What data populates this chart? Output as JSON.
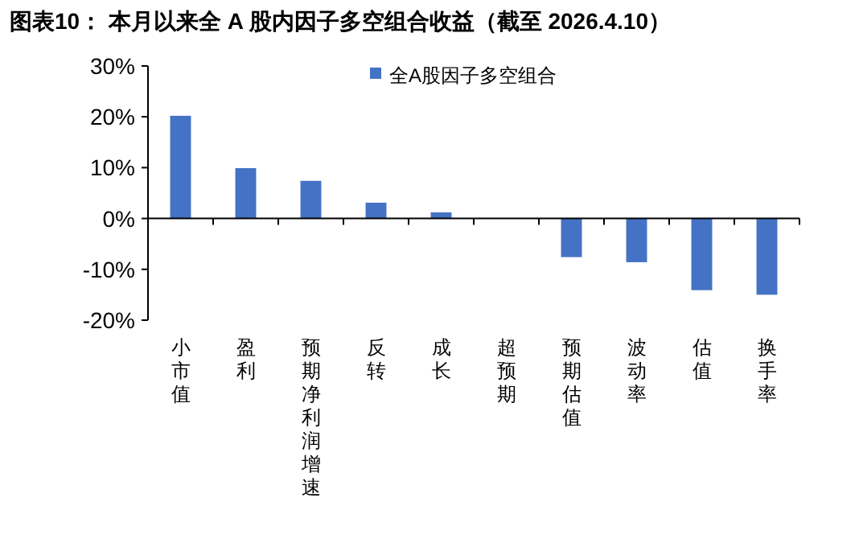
{
  "chart_data": {
    "type": "bar",
    "title": "图表10：  本月以来全 A 股内因子多空组合收益（截至 2026.4.10）",
    "categories": [
      "小市值",
      "盈利",
      "预期净利润增速",
      "反转",
      "成长",
      "超预期",
      "预期估值",
      "波动率",
      "估值",
      "换手率"
    ],
    "series": [
      {
        "name": "全A股因子多空组合",
        "color": "#4472c4",
        "values": [
          20.2,
          9.9,
          7.4,
          3.1,
          1.2,
          0.0,
          -7.6,
          -8.6,
          -14.1,
          -15.0
        ]
      }
    ],
    "ylim": [
      -20,
      30
    ],
    "yticks": [
      {
        "value": -20,
        "label": "-20%"
      },
      {
        "value": -10,
        "label": "-10%"
      },
      {
        "value": 0,
        "label": "0%"
      },
      {
        "value": 10,
        "label": "10%"
      },
      {
        "value": 20,
        "label": "20%"
      },
      {
        "value": 30,
        "label": "30%"
      }
    ],
    "legend": "top"
  }
}
